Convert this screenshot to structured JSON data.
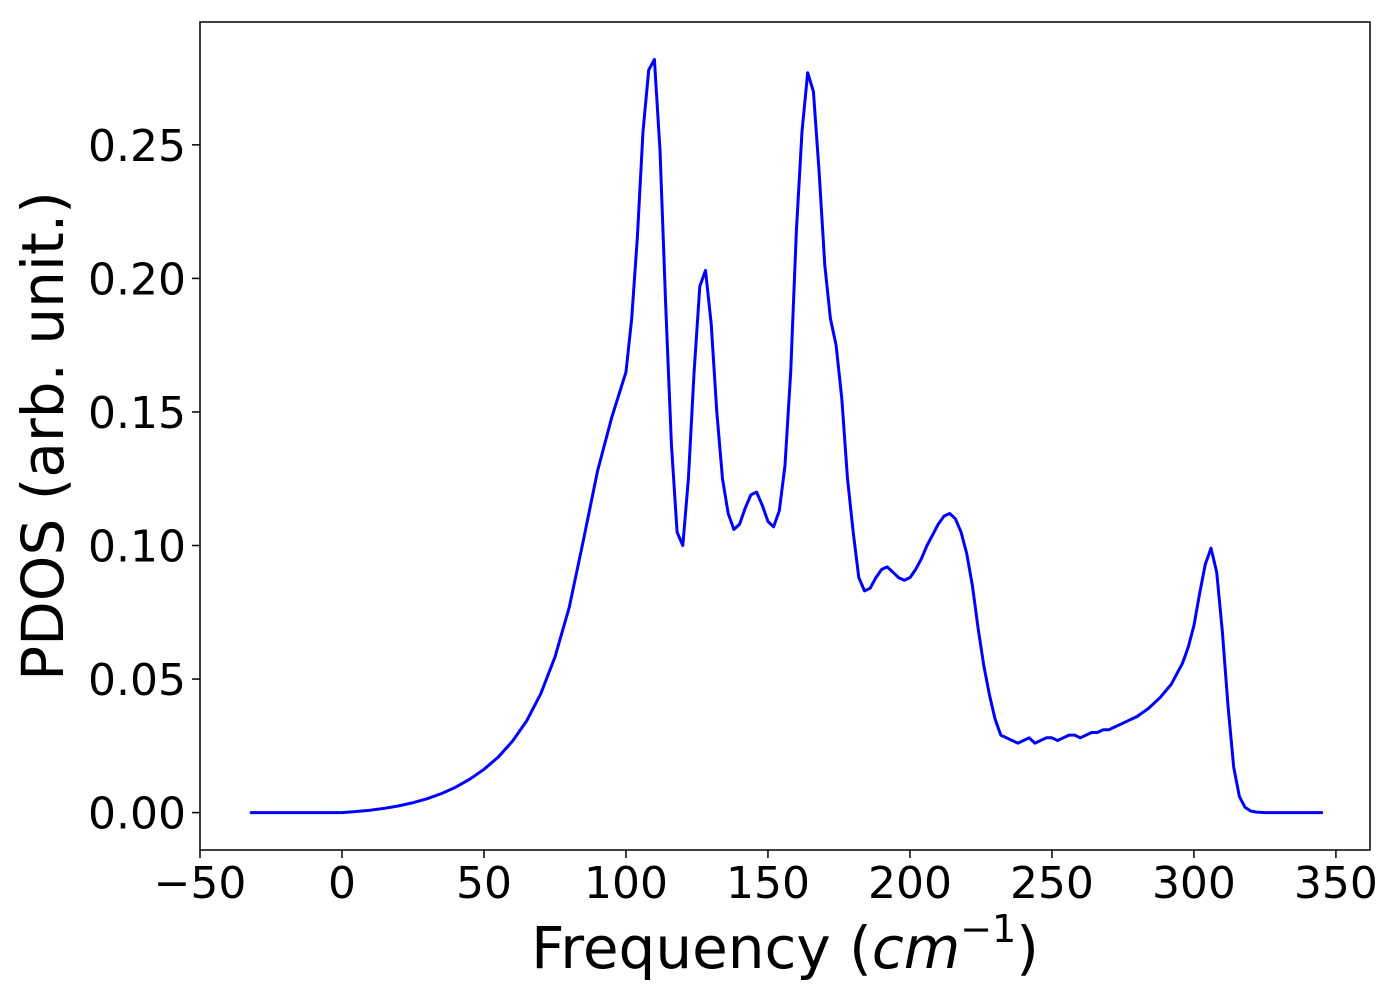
{
  "chart_data": {
    "type": "line",
    "title": "",
    "xlabel_prefix": "Frequency (",
    "xlabel_math": "cm",
    "xlabel_sup": "−1",
    "xlabel_suffix": ")",
    "ylabel": "PDOS (arb. unit.)",
    "xlim": [
      -50,
      362
    ],
    "ylim": [
      -0.014,
      0.296
    ],
    "xticks": [
      -50,
      0,
      50,
      100,
      150,
      200,
      250,
      300,
      350
    ],
    "xtick_labels": [
      "−50",
      "0",
      "50",
      "100",
      "150",
      "200",
      "250",
      "300",
      "350"
    ],
    "yticks": [
      0.0,
      0.05,
      0.1,
      0.15,
      0.2,
      0.25
    ],
    "ytick_labels": [
      "0.00",
      "0.05",
      "0.10",
      "0.15",
      "0.20",
      "0.25"
    ],
    "grid": false,
    "series": [
      {
        "color": "#0000ff",
        "x": [
          -32,
          -20,
          -10,
          0,
          5,
          10,
          15,
          20,
          25,
          30,
          35,
          40,
          45,
          50,
          55,
          60,
          65,
          70,
          75,
          80,
          85,
          90,
          95,
          100,
          102,
          104,
          106,
          108,
          110,
          112,
          114,
          116,
          118,
          120,
          122,
          124,
          126,
          128,
          130,
          132,
          134,
          136,
          138,
          140,
          142,
          144,
          146,
          148,
          150,
          152,
          154,
          156,
          158,
          160,
          162,
          164,
          166,
          168,
          170,
          172,
          174,
          176,
          178,
          180,
          182,
          184,
          186,
          188,
          190,
          192,
          194,
          196,
          198,
          200,
          202,
          204,
          206,
          208,
          210,
          212,
          214,
          216,
          218,
          220,
          222,
          224,
          226,
          228,
          230,
          232,
          234,
          236,
          238,
          240,
          242,
          244,
          246,
          248,
          250,
          252,
          254,
          256,
          258,
          260,
          262,
          264,
          266,
          268,
          270,
          272,
          274,
          276,
          278,
          280,
          284,
          288,
          292,
          294,
          296,
          298,
          300,
          302,
          304,
          306,
          308,
          310,
          312,
          314,
          316,
          318,
          320,
          322,
          325,
          330,
          345
        ],
        "values": [
          0.0,
          0.0,
          0.0,
          0.0,
          0.0004,
          0.0009,
          0.0016,
          0.0025,
          0.0037,
          0.0052,
          0.0071,
          0.0095,
          0.0125,
          0.0162,
          0.0208,
          0.0267,
          0.0343,
          0.0445,
          0.0583,
          0.0768,
          0.102,
          0.128,
          0.148,
          0.165,
          0.185,
          0.215,
          0.255,
          0.278,
          0.282,
          0.248,
          0.19,
          0.138,
          0.105,
          0.1,
          0.125,
          0.165,
          0.197,
          0.203,
          0.183,
          0.15,
          0.125,
          0.112,
          0.106,
          0.108,
          0.114,
          0.119,
          0.12,
          0.115,
          0.109,
          0.107,
          0.113,
          0.13,
          0.165,
          0.218,
          0.255,
          0.277,
          0.27,
          0.24,
          0.205,
          0.185,
          0.175,
          0.155,
          0.125,
          0.105,
          0.088,
          0.083,
          0.084,
          0.088,
          0.091,
          0.092,
          0.09,
          0.088,
          0.087,
          0.088,
          0.091,
          0.095,
          0.1,
          0.104,
          0.108,
          0.111,
          0.112,
          0.11,
          0.105,
          0.097,
          0.085,
          0.069,
          0.055,
          0.044,
          0.035,
          0.029,
          0.028,
          0.027,
          0.026,
          0.027,
          0.028,
          0.026,
          0.027,
          0.028,
          0.028,
          0.027,
          0.028,
          0.029,
          0.029,
          0.028,
          0.029,
          0.03,
          0.03,
          0.031,
          0.031,
          0.032,
          0.033,
          0.034,
          0.035,
          0.036,
          0.039,
          0.043,
          0.048,
          0.052,
          0.056,
          0.062,
          0.07,
          0.082,
          0.093,
          0.099,
          0.09,
          0.068,
          0.04,
          0.017,
          0.006,
          0.002,
          0.0006,
          0.0002,
          0.0,
          0.0,
          0.0
        ]
      }
    ]
  }
}
